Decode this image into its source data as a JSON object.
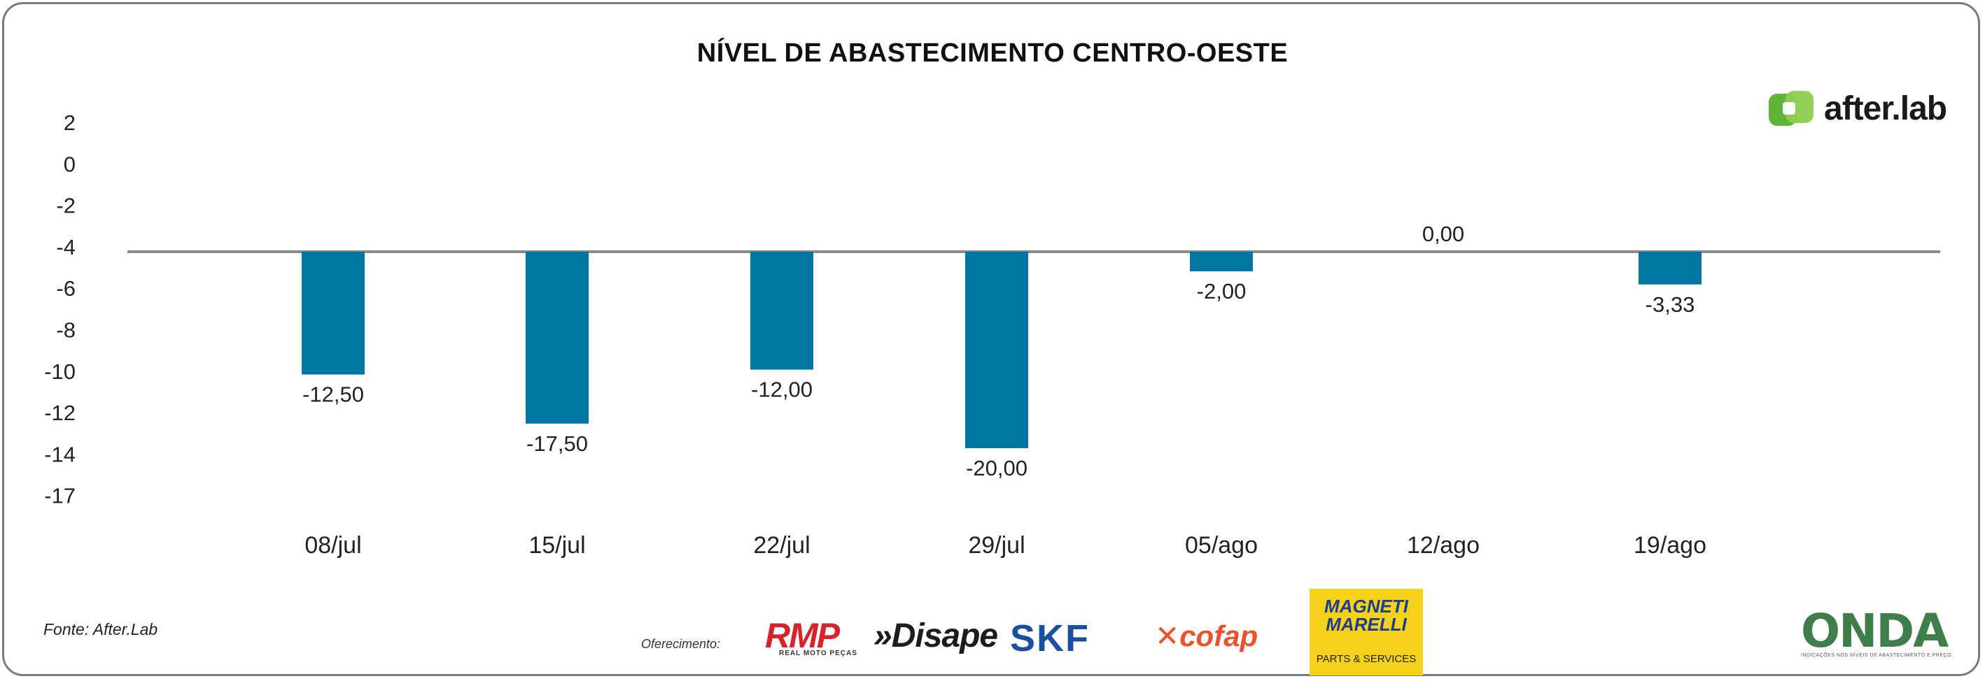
{
  "chart_data": {
    "type": "bar",
    "title": "NÍVEL DE ABASTECIMENTO CENTRO-OESTE",
    "categories": [
      "08/jul",
      "15/jul",
      "22/jul",
      "29/jul",
      "05/ago",
      "12/ago",
      "19/ago"
    ],
    "values": [
      -12.5,
      -17.5,
      -12.0,
      -20.0,
      -2.0,
      0.0,
      -3.33
    ],
    "value_labels": [
      "-12,50",
      "-17,50",
      "-12,00",
      "-20,00",
      "-2,00",
      "0,00",
      "-3,33"
    ],
    "y_tick_labels": [
      "2",
      "0",
      "-2",
      "-4",
      "-6",
      "-8",
      "-10",
      "-12",
      "-14",
      "-17"
    ],
    "xlabel": "",
    "ylabel": "",
    "bar_color": "#0077a3",
    "baseline_color": "#8a8a8a"
  },
  "source": "Fonte: After.Lab",
  "sponsors": {
    "label": "Oferecimento:",
    "rmp": "RMP",
    "rmp_sub": "REAL MOTO PEÇAS",
    "disape": "Disape",
    "skf": "SKF",
    "cofap": "cofap",
    "magneti_line1": "MAGNETI",
    "magneti_line2": "MARELLI",
    "magneti_sub": "PARTS & SERVICES"
  },
  "brand": {
    "name": "after.lab",
    "color": "#5fb53a"
  },
  "onda": {
    "name": "ONDA",
    "tagline": "INDICAÇÕES NOS NÍVEIS DE ABASTECIMENTO E PREÇO"
  }
}
